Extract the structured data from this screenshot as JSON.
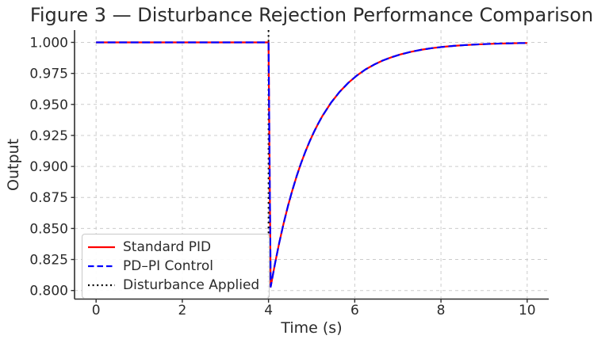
{
  "chart_data": {
    "type": "line",
    "title": "Figure 3 — Disturbance Rejection Performance Comparison",
    "xlabel": "Time (s)",
    "ylabel": "Output",
    "xlim": [
      -0.5,
      10.5
    ],
    "ylim": [
      0.7931,
      1.0099
    ],
    "xticks": [
      0,
      2,
      4,
      6,
      8,
      10
    ],
    "xtick_labels": [
      "0",
      "2",
      "4",
      "6",
      "8",
      "10"
    ],
    "yticks": [
      0.8,
      0.825,
      0.85,
      0.875,
      0.9,
      0.925,
      0.95,
      0.975,
      1.0
    ],
    "ytick_labels": [
      "0.800",
      "0.825",
      "0.850",
      "0.875",
      "0.900",
      "0.925",
      "0.950",
      "0.975",
      "1.000"
    ],
    "grid": {
      "on": true,
      "linestyle": "dashed",
      "color": "#cccccc"
    },
    "spine_color": "#2e2e2e",
    "text_color": "#2b2b2b",
    "legend_position": "lower left",
    "series": [
      {
        "name": "Standard PID",
        "color": "#ff0000",
        "linestyle": "solid",
        "points": [
          [
            0.0,
            1.0
          ],
          [
            0.5,
            1.0
          ],
          [
            1.0,
            1.0
          ],
          [
            1.5,
            1.0
          ],
          [
            2.0,
            1.0
          ],
          [
            2.5,
            1.0
          ],
          [
            3.0,
            1.0
          ],
          [
            3.5,
            1.0
          ],
          [
            4.0,
            1.0
          ],
          [
            4.05,
            0.803
          ],
          [
            4.15,
            0.8217
          ],
          [
            4.25,
            0.8387
          ],
          [
            4.35,
            0.8541
          ],
          [
            4.45,
            0.868
          ],
          [
            4.55,
            0.8805
          ],
          [
            4.65,
            0.8919
          ],
          [
            4.75,
            0.9022
          ],
          [
            4.85,
            0.9115
          ],
          [
            4.95,
            0.9199
          ],
          [
            5.05,
            0.9275
          ],
          [
            5.15,
            0.9344
          ],
          [
            5.25,
            0.9407
          ],
          [
            5.45,
            0.9514
          ],
          [
            5.65,
            0.9602
          ],
          [
            5.85,
            0.9674
          ],
          [
            6.05,
            0.9733
          ],
          [
            6.25,
            0.9782
          ],
          [
            6.45,
            0.9821
          ],
          [
            6.65,
            0.9854
          ],
          [
            6.85,
            0.988
          ],
          [
            7.05,
            0.9902
          ],
          [
            7.3,
            0.9924
          ],
          [
            7.55,
            0.9941
          ],
          [
            7.8,
            0.9954
          ],
          [
            8.05,
            0.9964
          ],
          [
            8.3,
            0.9972
          ],
          [
            8.55,
            0.9978
          ],
          [
            8.8,
            0.9983
          ],
          [
            9.05,
            0.9987
          ],
          [
            9.3,
            0.999
          ],
          [
            9.55,
            0.9992
          ],
          [
            9.8,
            0.9994
          ],
          [
            10.0,
            0.9995
          ]
        ]
      },
      {
        "name": "PD–PI Control",
        "color": "#0000ff",
        "linestyle": "dashed",
        "points": [
          [
            0.0,
            1.0
          ],
          [
            0.5,
            1.0
          ],
          [
            1.0,
            1.0
          ],
          [
            1.5,
            1.0
          ],
          [
            2.0,
            1.0
          ],
          [
            2.5,
            1.0
          ],
          [
            3.0,
            1.0
          ],
          [
            3.5,
            1.0
          ],
          [
            4.0,
            1.0
          ],
          [
            4.05,
            0.803
          ],
          [
            4.15,
            0.8217
          ],
          [
            4.25,
            0.8387
          ],
          [
            4.35,
            0.8541
          ],
          [
            4.45,
            0.868
          ],
          [
            4.55,
            0.8805
          ],
          [
            4.65,
            0.8919
          ],
          [
            4.75,
            0.9022
          ],
          [
            4.85,
            0.9115
          ],
          [
            4.95,
            0.9199
          ],
          [
            5.05,
            0.9275
          ],
          [
            5.15,
            0.9344
          ],
          [
            5.25,
            0.9407
          ],
          [
            5.45,
            0.9514
          ],
          [
            5.65,
            0.9602
          ],
          [
            5.85,
            0.9674
          ],
          [
            6.05,
            0.9733
          ],
          [
            6.25,
            0.9782
          ],
          [
            6.45,
            0.9821
          ],
          [
            6.65,
            0.9854
          ],
          [
            6.85,
            0.988
          ],
          [
            7.05,
            0.9902
          ],
          [
            7.3,
            0.9924
          ],
          [
            7.55,
            0.9941
          ],
          [
            7.8,
            0.9954
          ],
          [
            8.05,
            0.9964
          ],
          [
            8.3,
            0.9972
          ],
          [
            8.55,
            0.9978
          ],
          [
            8.8,
            0.9983
          ],
          [
            9.05,
            0.9987
          ],
          [
            9.3,
            0.999
          ],
          [
            9.55,
            0.9992
          ],
          [
            9.8,
            0.9994
          ],
          [
            10.0,
            0.9995
          ]
        ]
      }
    ],
    "annotations": [
      {
        "name": "Disturbance Applied",
        "type": "vline",
        "x": 4,
        "color": "#000000",
        "linestyle": "dotted"
      }
    ]
  }
}
